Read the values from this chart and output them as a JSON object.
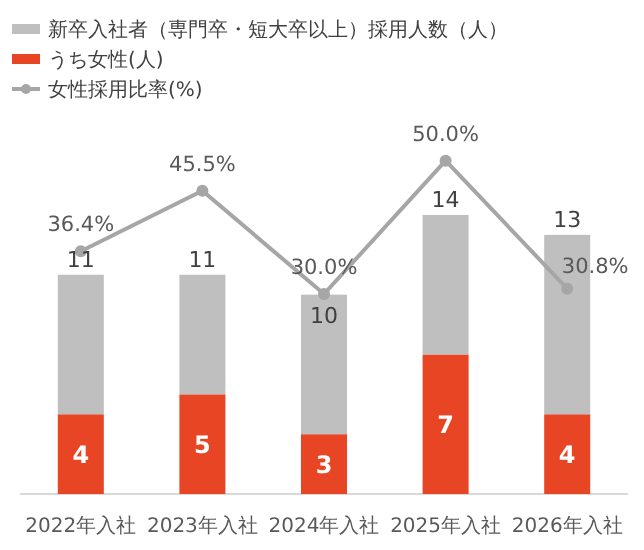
{
  "chart_data": {
    "type": "bar",
    "stacked": true,
    "categories": [
      "2022年入社",
      "2023年入社",
      "2024年入社",
      "2025年入社",
      "2026年入社"
    ],
    "series": [
      {
        "name": "うち女性(人)",
        "color": "#e84525",
        "values": [
          4,
          5,
          3,
          7,
          4
        ],
        "value_labels": [
          "4",
          "5",
          "3",
          "7",
          "4"
        ]
      },
      {
        "name": "新卒入社者（専門卒・短大卒以上）採用人数（人）",
        "color": "#bfbfbf",
        "values": [
          7,
          6,
          7,
          7,
          9
        ]
      },
      {
        "name": "女性採用比率(%)",
        "type": "line",
        "axis": "y2",
        "color": "#a6a6a6",
        "marker": "circle",
        "values": [
          36.4,
          45.5,
          30.0,
          50.0,
          30.8
        ],
        "value_labels": [
          "36.4%",
          "45.5%",
          "30.0%",
          "50.0%",
          "30.8%"
        ]
      }
    ],
    "totals": [
      "11",
      "11",
      "10",
      "14",
      "13"
    ],
    "tick_labels": "x",
    "legend": "top left"
  }
}
